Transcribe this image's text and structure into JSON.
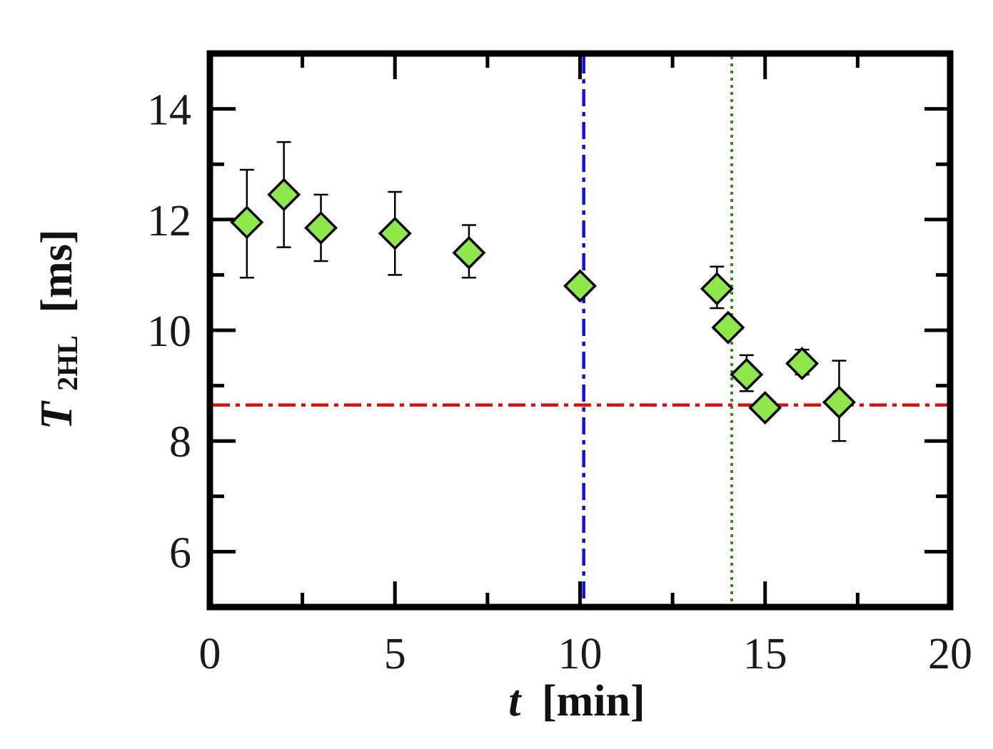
{
  "chart_data": {
    "type": "scatter",
    "title": "",
    "xlabel": {
      "symbol": "t",
      "unit": "[min]"
    },
    "ylabel": {
      "symbol": "T",
      "subscript": "2HL",
      "unit": "[ms]"
    },
    "xlim": [
      0,
      20
    ],
    "ylim": [
      5,
      15
    ],
    "x_ticks": [
      0,
      5,
      10,
      15,
      20
    ],
    "x_tick_labels": [
      "0",
      "5",
      "10",
      "15",
      "20"
    ],
    "y_ticks": [
      6,
      8,
      10,
      12,
      14
    ],
    "y_tick_labels": [
      "6",
      "8",
      "10",
      "12",
      "14"
    ],
    "grid": false,
    "series": [
      {
        "marker": "diamond",
        "color": "#8ee84a",
        "edge_color": "#000000",
        "points": [
          {
            "x": 1,
            "y": 11.95,
            "err_low": 1.0,
            "err_high": 0.95
          },
          {
            "x": 2,
            "y": 12.45,
            "err_low": 0.95,
            "err_high": 0.95
          },
          {
            "x": 3,
            "y": 11.85,
            "err_low": 0.6,
            "err_high": 0.6
          },
          {
            "x": 5,
            "y": 11.75,
            "err_low": 0.75,
            "err_high": 0.75
          },
          {
            "x": 7,
            "y": 11.4,
            "err_low": 0.45,
            "err_high": 0.5
          },
          {
            "x": 10,
            "y": 10.8,
            "err_low": 0,
            "err_high": 0
          },
          {
            "x": 13.7,
            "y": 10.75,
            "err_low": 0.35,
            "err_high": 0.4
          },
          {
            "x": 14,
            "y": 10.05,
            "err_low": 0,
            "err_high": 0
          },
          {
            "x": 14.5,
            "y": 9.2,
            "err_low": 0.3,
            "err_high": 0.35
          },
          {
            "x": 15,
            "y": 8.6,
            "err_low": 0,
            "err_high": 0
          },
          {
            "x": 16,
            "y": 9.4,
            "err_low": 0.2,
            "err_high": 0.25
          },
          {
            "x": 17,
            "y": 8.7,
            "err_low": 0.7,
            "err_high": 0.75
          }
        ]
      }
    ],
    "reference_lines": [
      {
        "orientation": "vertical",
        "value": 10.1,
        "color": "#1010e0",
        "style": "dash-dot"
      },
      {
        "orientation": "vertical",
        "value": 14.1,
        "color": "#3a8a1a",
        "style": "dotted"
      },
      {
        "orientation": "horizontal",
        "value": 8.65,
        "color": "#dd1010",
        "style": "dash-dot"
      }
    ]
  }
}
